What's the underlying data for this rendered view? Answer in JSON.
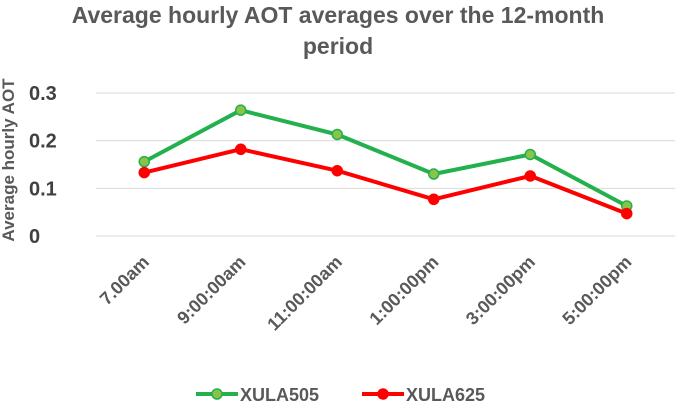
{
  "chart_data": {
    "type": "line",
    "title_lines": [
      "Average hourly AOT averages over the 12-month",
      "period"
    ],
    "xlabel": "",
    "ylabel": "Average hourly AOT",
    "categories": [
      "7.00am",
      "9:00:00am",
      "11:00:00am",
      "1:00:00pm",
      "3:00:00pm",
      "5:00:00pm"
    ],
    "yticks": [
      "0",
      "0.1",
      "0.2",
      "0.3"
    ],
    "ylim": [
      0,
      0.3
    ],
    "grid": true,
    "legend": "bottom",
    "series": [
      {
        "name": "XULA505",
        "color": "#22b14c",
        "marker_fill": "#8bc34a",
        "values": [
          0.156,
          0.264,
          0.213,
          0.13,
          0.171,
          0.063
        ]
      },
      {
        "name": "XULA625",
        "color": "#ff0000",
        "marker_fill": "#ff0000",
        "values": [
          0.133,
          0.182,
          0.137,
          0.077,
          0.126,
          0.047
        ]
      }
    ]
  }
}
